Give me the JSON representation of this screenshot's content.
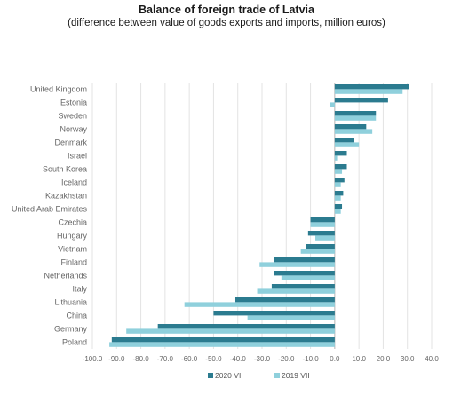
{
  "header": {
    "title": "Balance of foreign trade of Latvia",
    "subtitle": "(difference between value of goods exports and imports, million euros)"
  },
  "colors": {
    "series_2020": "#2b7b8f",
    "series_2019": "#8fd0dc",
    "grid": "#e3e3e3",
    "axis": "#bbbbbb"
  },
  "chart_data": {
    "type": "bar",
    "orientation": "horizontal",
    "title": "Balance of foreign trade of Latvia",
    "subtitle": "(difference between value of goods exports and imports, million euros)",
    "categories": [
      "United Kingdom",
      "Estonia",
      "Sweden",
      "Norway",
      "Denmark",
      "Israel",
      "South Korea",
      "Iceland",
      "Kazakhstan",
      "United Arab Emirates",
      "Czechia",
      "Hungary",
      "Vietnam",
      "Finland",
      "Netherlands",
      "Italy",
      "Lithuania",
      "China",
      "Germany",
      "Poland"
    ],
    "series": [
      {
        "name": "2020 VII",
        "values": [
          30.5,
          22,
          17,
          13,
          8,
          5,
          5,
          4,
          3.5,
          3,
          -10,
          -11,
          -12,
          -25,
          -25,
          -26,
          -41,
          -50,
          -73,
          -92
        ]
      },
      {
        "name": "2019 VII",
        "values": [
          28,
          -2,
          17,
          15.5,
          10,
          1,
          3,
          2.5,
          2.5,
          2.5,
          -10,
          -8,
          -14,
          -31,
          -22,
          -32,
          -62,
          -36,
          -86,
          -93
        ]
      }
    ],
    "xlim": [
      -100,
      40
    ],
    "xticks": [
      "-100.0",
      "-90.0",
      "-80.0",
      "-70.0",
      "-60.0",
      "-50.0",
      "-40.0",
      "-30.0",
      "-20.0",
      "-10.0",
      "0.0",
      "10.0",
      "20.0",
      "30.0",
      "40.0"
    ],
    "grid": true,
    "legend": "bottom"
  }
}
